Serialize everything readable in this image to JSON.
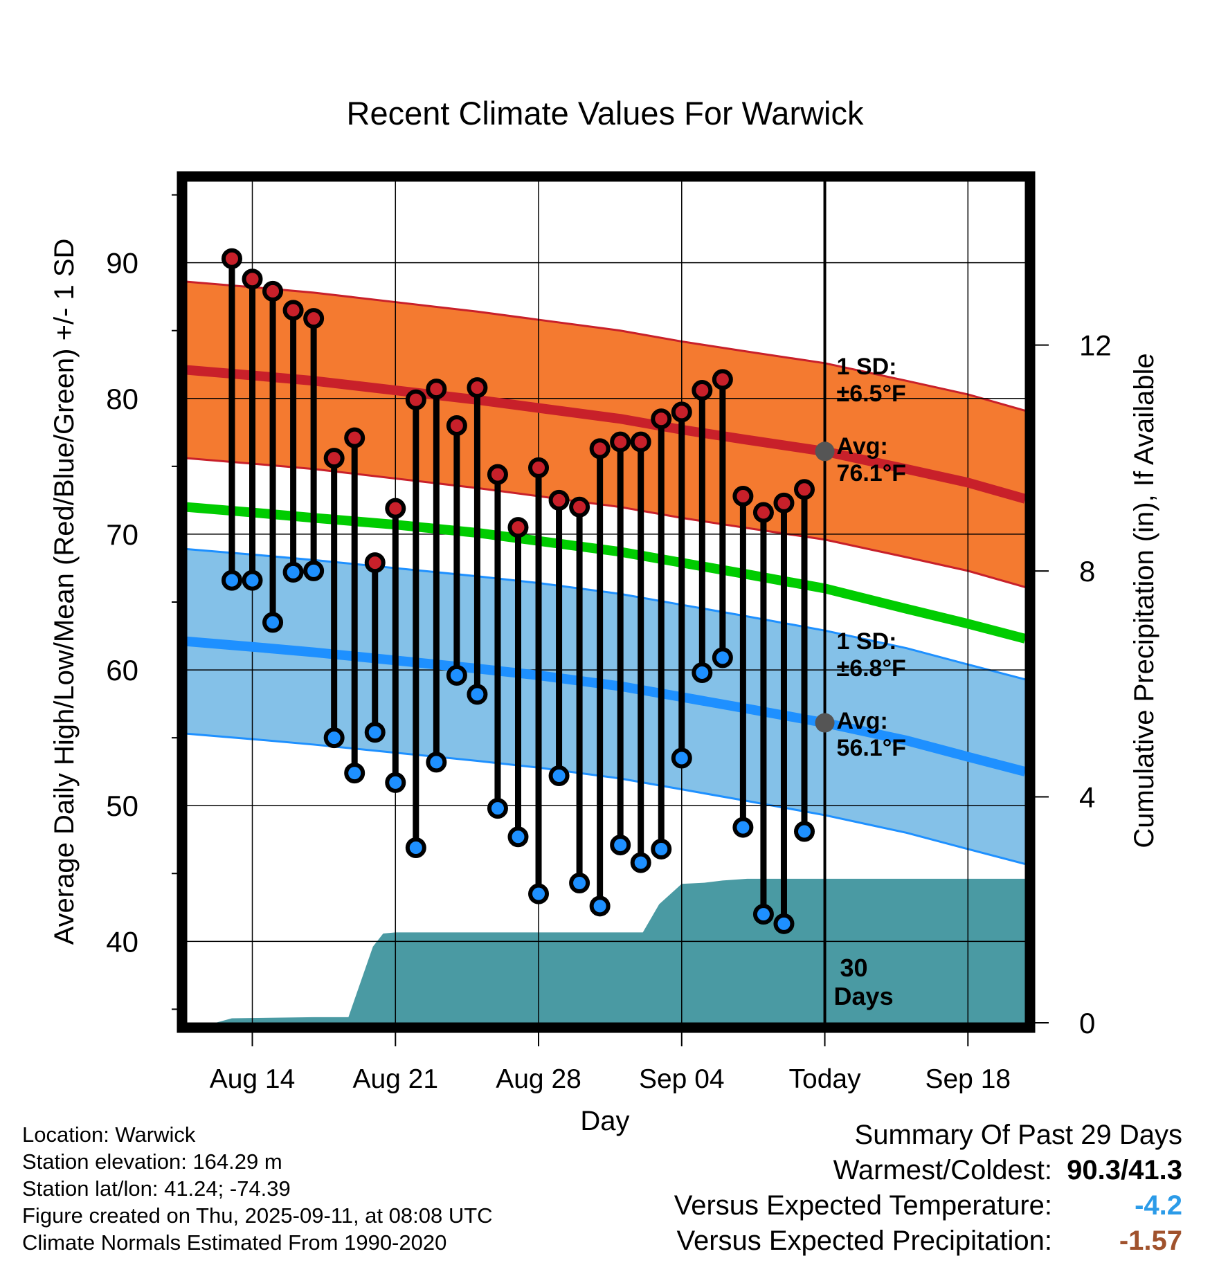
{
  "title": "Recent Climate Values For Warwick",
  "xlabel": "Day",
  "ylabel_left": "Average Daily High/Low/Mean (Red/Blue/Green) +/- 1 SD",
  "ylabel_right": "Cumulative Precipitation (in), If Available",
  "colors": {
    "high": "#c8202a",
    "high_band": "#f47a30",
    "low": "#1e90ff",
    "low_band": "#84c1e8",
    "mean": "#00cc00",
    "precip": "#4a9aa3",
    "annotation": "#555555",
    "negative_temp": "#2b9be8",
    "negative_precip": "#a0522d"
  },
  "annotations": {
    "high_sd_label": "1 SD:",
    "high_sd_value": "±6.5°F",
    "high_avg_label": "Avg:",
    "high_avg_value": "76.1°F",
    "low_sd_label": "1 SD:",
    "low_sd_value": "±6.8°F",
    "low_avg_label": "Avg:",
    "low_avg_value": "56.1°F",
    "window_line1": "30",
    "window_line2": "Days"
  },
  "footer_left": [
    "Location: Warwick",
    "Station elevation: 164.29 m",
    "Station lat/lon: 41.24; -74.39",
    "Figure created on Thu, 2025-09-11, at 08:08 UTC",
    "Climate Normals Estimated From 1990-2020"
  ],
  "summary": {
    "heading": "Summary Of Past 29 Days",
    "warm_cold_label": "Warmest/Coldest:",
    "warm_cold_value": "90.3/41.3",
    "temp_label": "Versus Expected Temperature:",
    "temp_value": "-4.2",
    "precip_label": "Versus Expected Precipitation:",
    "precip_value": "-1.57"
  },
  "chart_data": {
    "type": "line",
    "x_ticks": [
      {
        "day": 14,
        "label": "Aug 14"
      },
      {
        "day": 21,
        "label": "Aug 21"
      },
      {
        "day": 28,
        "label": "Aug 28"
      },
      {
        "day": 35,
        "label": "Sep 04"
      },
      {
        "day": 42,
        "label": "Today"
      },
      {
        "day": 49,
        "label": "Sep 18"
      }
    ],
    "x_note": "day numbers count from Aug 1 (Aug 14 = 14, Sep 04 = 35, Sep 11 = Today = 42)",
    "xlim": [
      10.8,
      51.8
    ],
    "ylim": [
      34,
      96
    ],
    "y_ticks": [
      40,
      50,
      60,
      70,
      80,
      90
    ],
    "y2lim": [
      0,
      14.9
    ],
    "y2_ticks": [
      0,
      4,
      8,
      12
    ],
    "today": 42,
    "daily": {
      "days": [
        13,
        14,
        15,
        16,
        17,
        18,
        19,
        20,
        21,
        22,
        23,
        24,
        25,
        26,
        27,
        28,
        29,
        30,
        31,
        32,
        33,
        34,
        35,
        36,
        37,
        38,
        39,
        40,
        41
      ],
      "high": [
        90.3,
        88.8,
        87.9,
        86.5,
        85.9,
        75.6,
        77.1,
        67.9,
        71.9,
        79.9,
        80.7,
        78.0,
        80.8,
        74.4,
        70.5,
        74.9,
        72.5,
        72.0,
        76.3,
        76.8,
        76.8,
        78.5,
        79.0,
        80.6,
        81.4,
        72.8,
        71.6,
        72.3,
        73.3
      ],
      "low": [
        66.6,
        66.6,
        63.5,
        67.2,
        67.3,
        55.0,
        52.4,
        55.4,
        51.7,
        46.9,
        53.2,
        59.6,
        58.2,
        49.8,
        47.7,
        43.5,
        52.2,
        44.3,
        42.6,
        47.1,
        45.8,
        46.8,
        53.5,
        59.8,
        60.9,
        48.4,
        42.0,
        41.3,
        48.1
      ]
    },
    "normals": {
      "days": [
        10.8,
        14,
        17,
        21,
        25,
        28,
        32,
        35,
        38,
        42,
        46,
        49,
        51.8
      ],
      "high_mean": [
        82.1,
        81.7,
        81.3,
        80.6,
        79.9,
        79.3,
        78.5,
        77.7,
        77.0,
        76.1,
        74.8,
        73.8,
        72.6
      ],
      "high_sd": 6.5,
      "low_mean": [
        62.1,
        61.7,
        61.3,
        60.7,
        60.1,
        59.6,
        58.8,
        58.0,
        57.2,
        56.1,
        54.8,
        53.6,
        52.5
      ],
      "low_sd": 6.8,
      "mean": [
        72.0,
        71.6,
        71.2,
        70.7,
        70.1,
        69.5,
        68.7,
        67.9,
        67.1,
        66.0,
        64.5,
        63.4,
        62.3
      ]
    },
    "precip_cumulative": {
      "days": [
        10.8,
        12.2,
        13,
        17,
        18.7,
        19.9,
        20.4,
        21,
        33.1,
        33.9,
        35,
        36.1,
        37,
        38.2,
        51.8
      ],
      "inches": [
        0,
        0,
        0.08,
        0.1,
        0.1,
        1.35,
        1.58,
        1.6,
        1.6,
        2.1,
        2.46,
        2.48,
        2.52,
        2.55,
        2.55
      ]
    }
  }
}
